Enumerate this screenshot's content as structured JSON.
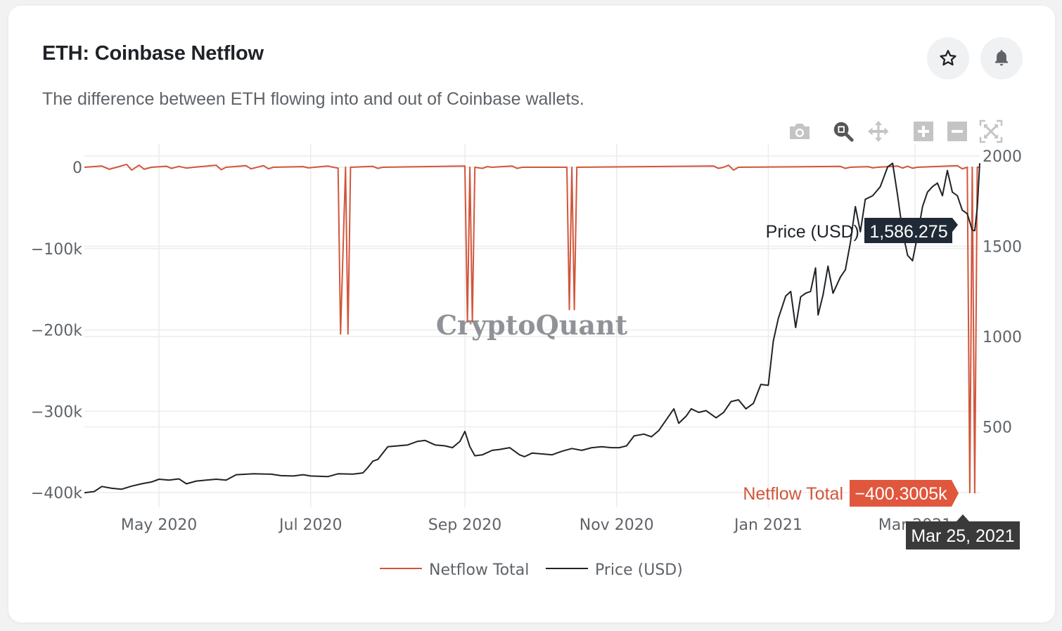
{
  "card": {
    "title": "ETH: Coinbase Netflow",
    "subtitle": "The difference between ETH flowing into and out of Coinbase wallets.",
    "actions": [
      {
        "name": "favorite",
        "icon": "star-icon"
      },
      {
        "name": "alert",
        "icon": "bell-icon"
      }
    ]
  },
  "modebar": [
    {
      "name": "download-png",
      "icon": "camera-icon",
      "active": false
    },
    {
      "name": "zoom",
      "icon": "zoom-icon",
      "active": true
    },
    {
      "name": "pan",
      "icon": "pan-icon",
      "active": false
    },
    {
      "name": "zoom-in",
      "icon": "plus-icon",
      "active": false
    },
    {
      "name": "zoom-out",
      "icon": "minus-icon",
      "active": false
    },
    {
      "name": "autoscale",
      "icon": "autoscale-icon",
      "active": false
    }
  ],
  "colors": {
    "netflow": "#d2553b",
    "price": "#1f2328",
    "netflow_hover_bg": "#e0573d",
    "price_hover_bg": "#1f2a36",
    "date_hover_bg": "#3a3a3a",
    "grid": "#ececec",
    "tick": "#5f6368"
  },
  "watermark": "CryptoQuant",
  "hover": {
    "price_label": "Price (USD)",
    "price_value": "1,586.275",
    "netflow_label": "Netflow Total",
    "netflow_value": "−400.3005k",
    "date": "Mar 25, 2021"
  },
  "chart_data": {
    "type": "line",
    "title": "ETH: Coinbase Netflow",
    "x_range": [
      "2020-04-01",
      "2021-03-27"
    ],
    "x_ticks": [
      {
        "date": "2020-05-01",
        "label": "May 2020"
      },
      {
        "date": "2020-07-01",
        "label": "Jul 2020"
      },
      {
        "date": "2020-09-01",
        "label": "Sep 2020"
      },
      {
        "date": "2020-11-01",
        "label": "Nov 2020"
      },
      {
        "date": "2021-01-01",
        "label": "Jan 2021"
      },
      {
        "date": "2021-03-01",
        "label": "Mar 2021"
      }
    ],
    "y_left": {
      "label": "Netflow Total",
      "range": [
        -400000,
        0
      ],
      "ticks": [
        {
          "value": 0,
          "label": "0"
        },
        {
          "value": -100000,
          "label": "−100k"
        },
        {
          "value": -200000,
          "label": "−200k"
        },
        {
          "value": -300000,
          "label": "−300k"
        },
        {
          "value": -400000,
          "label": "−400k"
        }
      ]
    },
    "y_right": {
      "label": "Price (USD)",
      "range": [
        0,
        2060
      ],
      "ticks": [
        {
          "value": 2000,
          "label": "2000"
        },
        {
          "value": 1500,
          "label": "1500"
        },
        {
          "value": 1000,
          "label": "1000"
        },
        {
          "value": 500,
          "label": "500"
        }
      ]
    },
    "grid": true,
    "legend_position": "bottom-center",
    "series": [
      {
        "name": "Netflow Total",
        "axis": "left",
        "points": [
          [
            "2020-04-01",
            0
          ],
          [
            "2020-04-08",
            1500
          ],
          [
            "2020-04-11",
            -2500
          ],
          [
            "2020-04-14",
            0
          ],
          [
            "2020-04-18",
            3500
          ],
          [
            "2020-04-20",
            -3500
          ],
          [
            "2020-04-23",
            2500
          ],
          [
            "2020-04-25",
            -2500
          ],
          [
            "2020-04-28",
            0
          ],
          [
            "2020-05-04",
            1200
          ],
          [
            "2020-05-06",
            -1500
          ],
          [
            "2020-05-09",
            1000
          ],
          [
            "2020-05-12",
            -1000
          ],
          [
            "2020-05-15",
            0
          ],
          [
            "2020-05-24",
            2500
          ],
          [
            "2020-05-26",
            -3000
          ],
          [
            "2020-05-28",
            0
          ],
          [
            "2020-06-05",
            2000
          ],
          [
            "2020-06-07",
            -2000
          ],
          [
            "2020-06-12",
            2000
          ],
          [
            "2020-06-14",
            -2000
          ],
          [
            "2020-06-16",
            0
          ],
          [
            "2020-06-28",
            800
          ],
          [
            "2020-06-30",
            -800
          ],
          [
            "2020-07-08",
            1500
          ],
          [
            "2020-07-10",
            0
          ],
          [
            "2020-07-12",
            -1000
          ],
          [
            "2020-07-13",
            -205000
          ],
          [
            "2020-07-15",
            0
          ],
          [
            "2020-07-16",
            -205000
          ],
          [
            "2020-07-17",
            0
          ],
          [
            "2020-07-26",
            1000
          ],
          [
            "2020-07-28",
            -1500
          ],
          [
            "2020-07-30",
            0
          ],
          [
            "2020-09-01",
            1500
          ],
          [
            "2020-09-02",
            -190000
          ],
          [
            "2020-09-03",
            0
          ],
          [
            "2020-09-04",
            -190000
          ],
          [
            "2020-09-05",
            0
          ],
          [
            "2020-09-08",
            -1500
          ],
          [
            "2020-09-10",
            800
          ],
          [
            "2020-09-12",
            0
          ],
          [
            "2020-09-20",
            1500
          ],
          [
            "2020-09-22",
            -1500
          ],
          [
            "2020-09-24",
            0
          ],
          [
            "2020-10-12",
            0
          ],
          [
            "2020-10-13",
            -175000
          ],
          [
            "2020-10-14",
            0
          ],
          [
            "2020-10-15",
            -175000
          ],
          [
            "2020-10-16",
            0
          ],
          [
            "2020-12-10",
            1500
          ],
          [
            "2020-12-12",
            -1500
          ],
          [
            "2020-12-14",
            0
          ],
          [
            "2020-12-16",
            2500
          ],
          [
            "2020-12-18",
            -3500
          ],
          [
            "2020-12-20",
            0
          ],
          [
            "2021-01-30",
            1000
          ],
          [
            "2021-02-01",
            -1500
          ],
          [
            "2021-02-03",
            0
          ],
          [
            "2021-02-10",
            800
          ],
          [
            "2021-02-12",
            -800
          ],
          [
            "2021-02-14",
            0
          ],
          [
            "2021-02-22",
            1500
          ],
          [
            "2021-02-24",
            -1000
          ],
          [
            "2021-02-26",
            1200
          ],
          [
            "2021-02-28",
            -1200
          ],
          [
            "2021-03-02",
            0
          ],
          [
            "2021-03-18",
            2000
          ],
          [
            "2021-03-20",
            -2000
          ],
          [
            "2021-03-22",
            0
          ],
          [
            "2021-03-23",
            -400000
          ],
          [
            "2021-03-24",
            0
          ],
          [
            "2021-03-25",
            -400300.5
          ],
          [
            "2021-03-26",
            0
          ],
          [
            "2021-03-27",
            0
          ]
        ]
      },
      {
        "name": "Price (USD)",
        "axis": "right",
        "points": [
          [
            "2020-04-01",
            135
          ],
          [
            "2020-04-05",
            142
          ],
          [
            "2020-04-08",
            170
          ],
          [
            "2020-04-12",
            160
          ],
          [
            "2020-04-16",
            155
          ],
          [
            "2020-04-20",
            172
          ],
          [
            "2020-04-24",
            185
          ],
          [
            "2020-04-28",
            195
          ],
          [
            "2020-05-01",
            210
          ],
          [
            "2020-05-05",
            205
          ],
          [
            "2020-05-09",
            212
          ],
          [
            "2020-05-12",
            185
          ],
          [
            "2020-05-16",
            200
          ],
          [
            "2020-05-20",
            205
          ],
          [
            "2020-05-24",
            210
          ],
          [
            "2020-05-28",
            205
          ],
          [
            "2020-06-01",
            235
          ],
          [
            "2020-06-08",
            240
          ],
          [
            "2020-06-15",
            238
          ],
          [
            "2020-06-19",
            230
          ],
          [
            "2020-06-24",
            228
          ],
          [
            "2020-06-28",
            235
          ],
          [
            "2020-07-01",
            228
          ],
          [
            "2020-07-08",
            225
          ],
          [
            "2020-07-12",
            240
          ],
          [
            "2020-07-18",
            238
          ],
          [
            "2020-07-22",
            245
          ],
          [
            "2020-07-24",
            275
          ],
          [
            "2020-07-26",
            310
          ],
          [
            "2020-07-28",
            320
          ],
          [
            "2020-08-01",
            390
          ],
          [
            "2020-08-05",
            395
          ],
          [
            "2020-08-09",
            400
          ],
          [
            "2020-08-13",
            420
          ],
          [
            "2020-08-16",
            425
          ],
          [
            "2020-08-20",
            400
          ],
          [
            "2020-08-24",
            395
          ],
          [
            "2020-08-27",
            385
          ],
          [
            "2020-08-30",
            420
          ],
          [
            "2020-09-01",
            475
          ],
          [
            "2020-09-03",
            390
          ],
          [
            "2020-09-05",
            340
          ],
          [
            "2020-09-08",
            345
          ],
          [
            "2020-09-12",
            370
          ],
          [
            "2020-09-15",
            375
          ],
          [
            "2020-09-19",
            385
          ],
          [
            "2020-09-23",
            345
          ],
          [
            "2020-09-25",
            335
          ],
          [
            "2020-09-28",
            355
          ],
          [
            "2020-10-02",
            350
          ],
          [
            "2020-10-06",
            345
          ],
          [
            "2020-10-10",
            365
          ],
          [
            "2020-10-14",
            380
          ],
          [
            "2020-10-18",
            370
          ],
          [
            "2020-10-22",
            385
          ],
          [
            "2020-10-26",
            390
          ],
          [
            "2020-10-30",
            385
          ],
          [
            "2020-11-02",
            385
          ],
          [
            "2020-11-05",
            395
          ],
          [
            "2020-11-08",
            450
          ],
          [
            "2020-11-12",
            460
          ],
          [
            "2020-11-15",
            445
          ],
          [
            "2020-11-18",
            480
          ],
          [
            "2020-11-21",
            540
          ],
          [
            "2020-11-24",
            600
          ],
          [
            "2020-11-26",
            520
          ],
          [
            "2020-11-29",
            560
          ],
          [
            "2020-12-01",
            600
          ],
          [
            "2020-12-04",
            580
          ],
          [
            "2020-12-07",
            590
          ],
          [
            "2020-12-11",
            550
          ],
          [
            "2020-12-14",
            580
          ],
          [
            "2020-12-17",
            640
          ],
          [
            "2020-12-20",
            650
          ],
          [
            "2020-12-23",
            600
          ],
          [
            "2020-12-26",
            630
          ],
          [
            "2020-12-29",
            735
          ],
          [
            "2021-01-01",
            730
          ],
          [
            "2021-01-03",
            975
          ],
          [
            "2021-01-05",
            1100
          ],
          [
            "2021-01-08",
            1225
          ],
          [
            "2021-01-10",
            1250
          ],
          [
            "2021-01-12",
            1050
          ],
          [
            "2021-01-14",
            1220
          ],
          [
            "2021-01-16",
            1240
          ],
          [
            "2021-01-18",
            1250
          ],
          [
            "2021-01-20",
            1380
          ],
          [
            "2021-01-21",
            1120
          ],
          [
            "2021-01-23",
            1230
          ],
          [
            "2021-01-25",
            1390
          ],
          [
            "2021-01-27",
            1240
          ],
          [
            "2021-01-30",
            1330
          ],
          [
            "2021-02-01",
            1370
          ],
          [
            "2021-02-03",
            1520
          ],
          [
            "2021-02-05",
            1720
          ],
          [
            "2021-02-07",
            1580
          ],
          [
            "2021-02-09",
            1760
          ],
          [
            "2021-02-12",
            1780
          ],
          [
            "2021-02-15",
            1830
          ],
          [
            "2021-02-18",
            1940
          ],
          [
            "2021-02-20",
            1960
          ],
          [
            "2021-02-22",
            1780
          ],
          [
            "2021-02-24",
            1580
          ],
          [
            "2021-02-26",
            1450
          ],
          [
            "2021-02-28",
            1420
          ],
          [
            "2021-03-02",
            1560
          ],
          [
            "2021-03-04",
            1720
          ],
          [
            "2021-03-06",
            1800
          ],
          [
            "2021-03-08",
            1830
          ],
          [
            "2021-03-10",
            1850
          ],
          [
            "2021-03-12",
            1780
          ],
          [
            "2021-03-14",
            1920
          ],
          [
            "2021-03-16",
            1800
          ],
          [
            "2021-03-18",
            1780
          ],
          [
            "2021-03-20",
            1700
          ],
          [
            "2021-03-22",
            1680
          ],
          [
            "2021-03-24",
            1590
          ],
          [
            "2021-03-25",
            1586.275
          ],
          [
            "2021-03-26",
            1710
          ],
          [
            "2021-03-27",
            1960
          ]
        ]
      }
    ]
  }
}
